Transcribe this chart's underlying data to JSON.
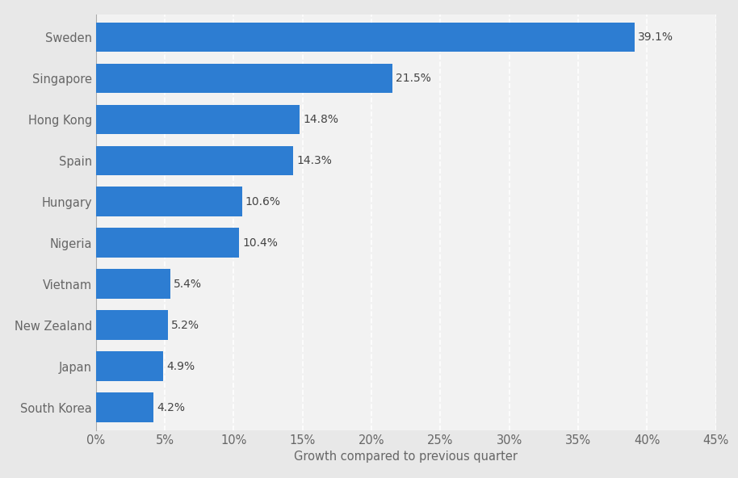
{
  "countries": [
    "South Korea",
    "Japan",
    "New Zealand",
    "Vietnam",
    "Nigeria",
    "Hungary",
    "Spain",
    "Hong Kong",
    "Singapore",
    "Sweden"
  ],
  "values": [
    4.2,
    4.9,
    5.2,
    5.4,
    10.4,
    10.6,
    14.3,
    14.8,
    21.5,
    39.1
  ],
  "bar_color": "#2d7dd2",
  "figure_bg_color": "#e8e8e8",
  "plot_bg_color": "#f2f2f2",
  "xlabel": "Growth compared to previous quarter",
  "xlim": [
    0,
    45
  ],
  "xticks": [
    0,
    5,
    10,
    15,
    20,
    25,
    30,
    35,
    40,
    45
  ],
  "label_color": "#666666",
  "value_label_color": "#444444",
  "grid_color": "#ffffff",
  "bar_height": 0.72,
  "label_fontsize": 10.5,
  "tick_fontsize": 10.5,
  "xlabel_fontsize": 10.5,
  "value_fontsize": 10.0
}
